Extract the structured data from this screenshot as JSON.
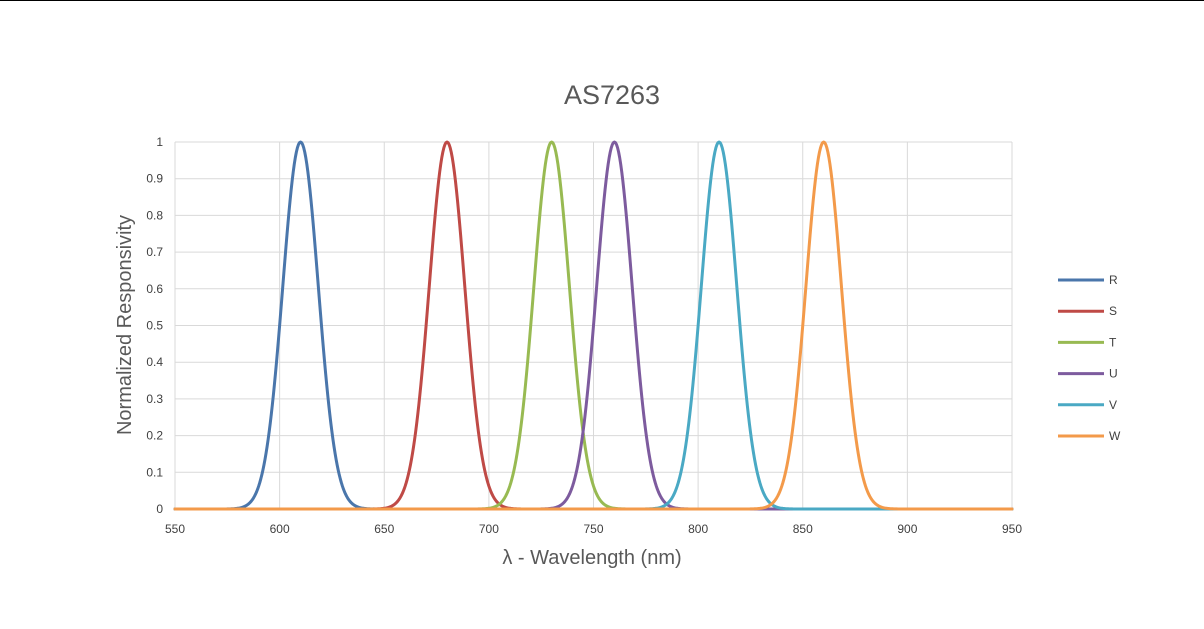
{
  "chart_data": {
    "type": "line",
    "title": "AS7263",
    "xlabel": "λ - Wavelength (nm)",
    "ylabel": "Normalized Responsivity",
    "xlim": [
      550,
      950
    ],
    "ylim": [
      0,
      1
    ],
    "x_ticks": [
      "550",
      "600",
      "650",
      "700",
      "750",
      "800",
      "850",
      "900",
      "950"
    ],
    "y_ticks": [
      "0",
      "0.1",
      "0.2",
      "0.3",
      "0.4",
      "0.5",
      "0.6",
      "0.7",
      "0.8",
      "0.9",
      "1"
    ],
    "grid": true,
    "legend_position": "right",
    "series": [
      {
        "name": "R",
        "color": "#4a76ab",
        "peak": 610,
        "fwhm": 20
      },
      {
        "name": "S",
        "color": "#bf4a46",
        "peak": 680,
        "fwhm": 20
      },
      {
        "name": "T",
        "color": "#98ba52",
        "peak": 730,
        "fwhm": 20
      },
      {
        "name": "U",
        "color": "#7d5b9e",
        "peak": 760,
        "fwhm": 20
      },
      {
        "name": "V",
        "color": "#4aa9c4",
        "peak": 810,
        "fwhm": 20
      },
      {
        "name": "W",
        "color": "#f39a4a",
        "peak": 860,
        "fwhm": 20
      }
    ]
  }
}
